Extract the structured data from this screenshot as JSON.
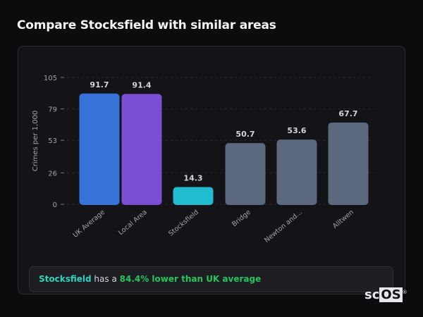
{
  "title": "Compare Stocksfield with similar areas",
  "chart_data": {
    "type": "bar",
    "title": "",
    "xlabel": "",
    "ylabel": "Crimes per 1,000",
    "ylim": [
      0,
      105
    ],
    "yticks": [
      0,
      26,
      53,
      79,
      105
    ],
    "grid": true,
    "categories": [
      "UK Average",
      "Local Area",
      "Stocksfield",
      "Bridge",
      "Newton and...",
      "Alltwen"
    ],
    "values": [
      91.7,
      91.4,
      14.3,
      50.7,
      53.6,
      67.7
    ],
    "value_labels": [
      "91.7",
      "91.4",
      "14.3",
      "50.7",
      "53.6",
      "67.7"
    ],
    "colors": [
      "#3673d8",
      "#7b4fd4",
      "#22bcd0",
      "#5b687d",
      "#5b687d",
      "#5b687d"
    ]
  },
  "summary": {
    "place": "Stocksfield",
    "middle": " has a ",
    "highlight": "84.4% lower than UK average"
  },
  "logo": {
    "text_a": "sc",
    "text_b": "OS",
    "mark": "®"
  }
}
